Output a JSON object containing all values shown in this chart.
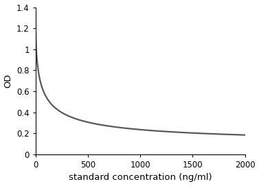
{
  "title": "",
  "xlabel": "standard concentration (ng/ml)",
  "ylabel": "OD",
  "xlim": [
    0,
    2000
  ],
  "ylim": [
    0,
    1.4
  ],
  "xticks": [
    0,
    500,
    1000,
    1500,
    2000
  ],
  "yticks": [
    0,
    0.2,
    0.4,
    0.6,
    0.8,
    1.0,
    1.2,
    1.4
  ],
  "line_color": "#595959",
  "line_width": 1.6,
  "background_color": "#ffffff",
  "curve_top": 1.2,
  "curve_asymptote": 0.08,
  "hill_k": 60.0,
  "hill_n": 0.65,
  "axis_color": "#000000",
  "tick_label_fontsize": 8.5,
  "label_fontsize": 9.5
}
